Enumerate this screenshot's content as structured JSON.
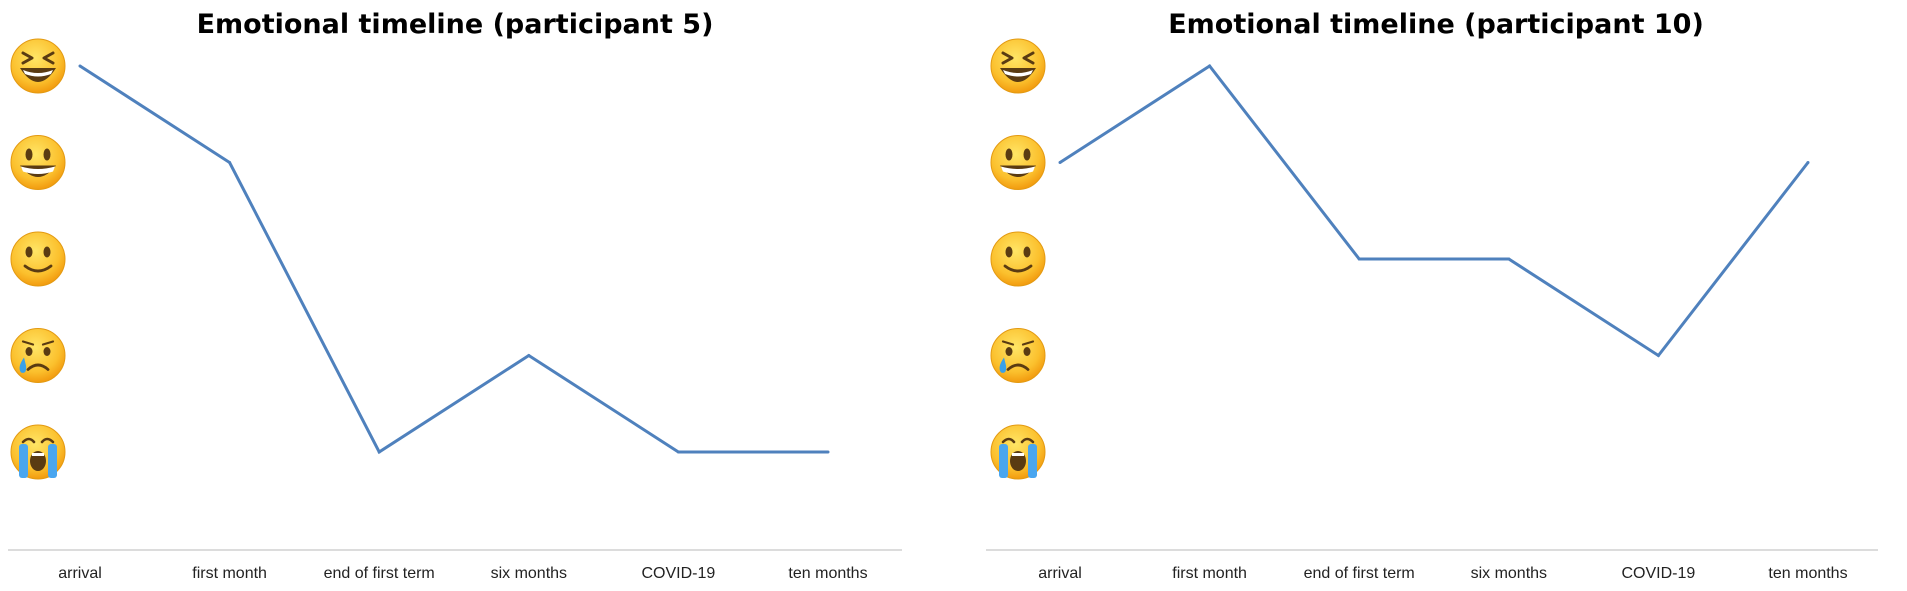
{
  "chart_data": [
    {
      "type": "line",
      "title": "Emotional timeline  (participant 5)",
      "categories": [
        "arrival",
        "first month",
        "end of first term",
        "six months",
        "COVID-19",
        "ten months"
      ],
      "y_levels": [
        "laughing-squint-face",
        "grinning-face",
        "slightly-smiling-face",
        "crying-face",
        "loudly-crying-face"
      ],
      "ylim": [
        1,
        5
      ],
      "values": [
        5,
        4,
        1,
        2,
        1,
        1
      ],
      "grid": false,
      "line_color": "#4f81bd"
    },
    {
      "type": "line",
      "title": "Emotional timeline  (participant 10)",
      "categories": [
        "arrival",
        "first month",
        "end of first term",
        "six months",
        "COVID-19",
        "ten months"
      ],
      "y_levels": [
        "laughing-squint-face",
        "grinning-face",
        "slightly-smiling-face",
        "crying-face",
        "loudly-crying-face"
      ],
      "ylim": [
        1,
        5
      ],
      "values": [
        4,
        5,
        3,
        3,
        2,
        4
      ],
      "grid": false,
      "line_color": "#4f81bd"
    }
  ]
}
